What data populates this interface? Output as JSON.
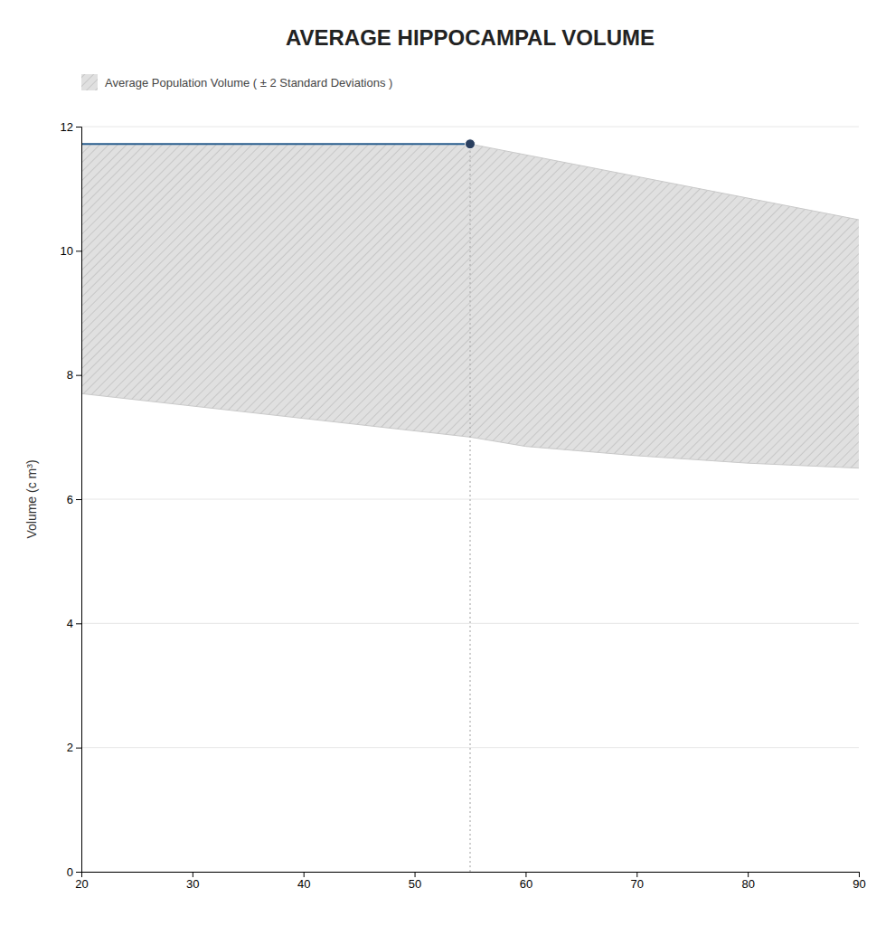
{
  "chart_data": {
    "type": "line",
    "title": "AVERAGE HIPPOCAMPAL VOLUME",
    "y_label": "Volume (c m³)",
    "xlim": [
      20,
      90
    ],
    "ylim": [
      0,
      12
    ],
    "xticks": [
      20,
      30,
      40,
      50,
      60,
      70,
      80,
      90
    ],
    "yticks": [
      0,
      2,
      4,
      6,
      8,
      10,
      12
    ],
    "grid": true,
    "legend": "top",
    "series": [
      {
        "name": "Average Population Volume ( ± 2 Standard Deviations )",
        "type": "band",
        "color": "#e0e0e0",
        "upper": {
          "x": [
            20,
            55,
            90
          ],
          "values": [
            11.72,
            11.72,
            10.5
          ]
        },
        "lower": {
          "x": [
            20,
            30,
            40,
            55,
            60,
            70,
            80,
            90
          ],
          "values": [
            7.7,
            7.5,
            7.3,
            7.0,
            6.85,
            6.7,
            6.58,
            6.5
          ]
        }
      },
      {
        "type": "line",
        "color": "#2a5f8f",
        "x": [
          20,
          20,
          55
        ],
        "values": [
          0,
          11.72,
          11.72
        ]
      },
      {
        "type": "line",
        "color": "#b0b0b0",
        "line_style": "dotted",
        "x": [
          55,
          55
        ],
        "values": [
          0,
          11.72
        ]
      },
      {
        "type": "scatter",
        "color": "#2a3f5f",
        "marker": "circle",
        "x": [
          55
        ],
        "values": [
          11.72
        ]
      }
    ]
  }
}
